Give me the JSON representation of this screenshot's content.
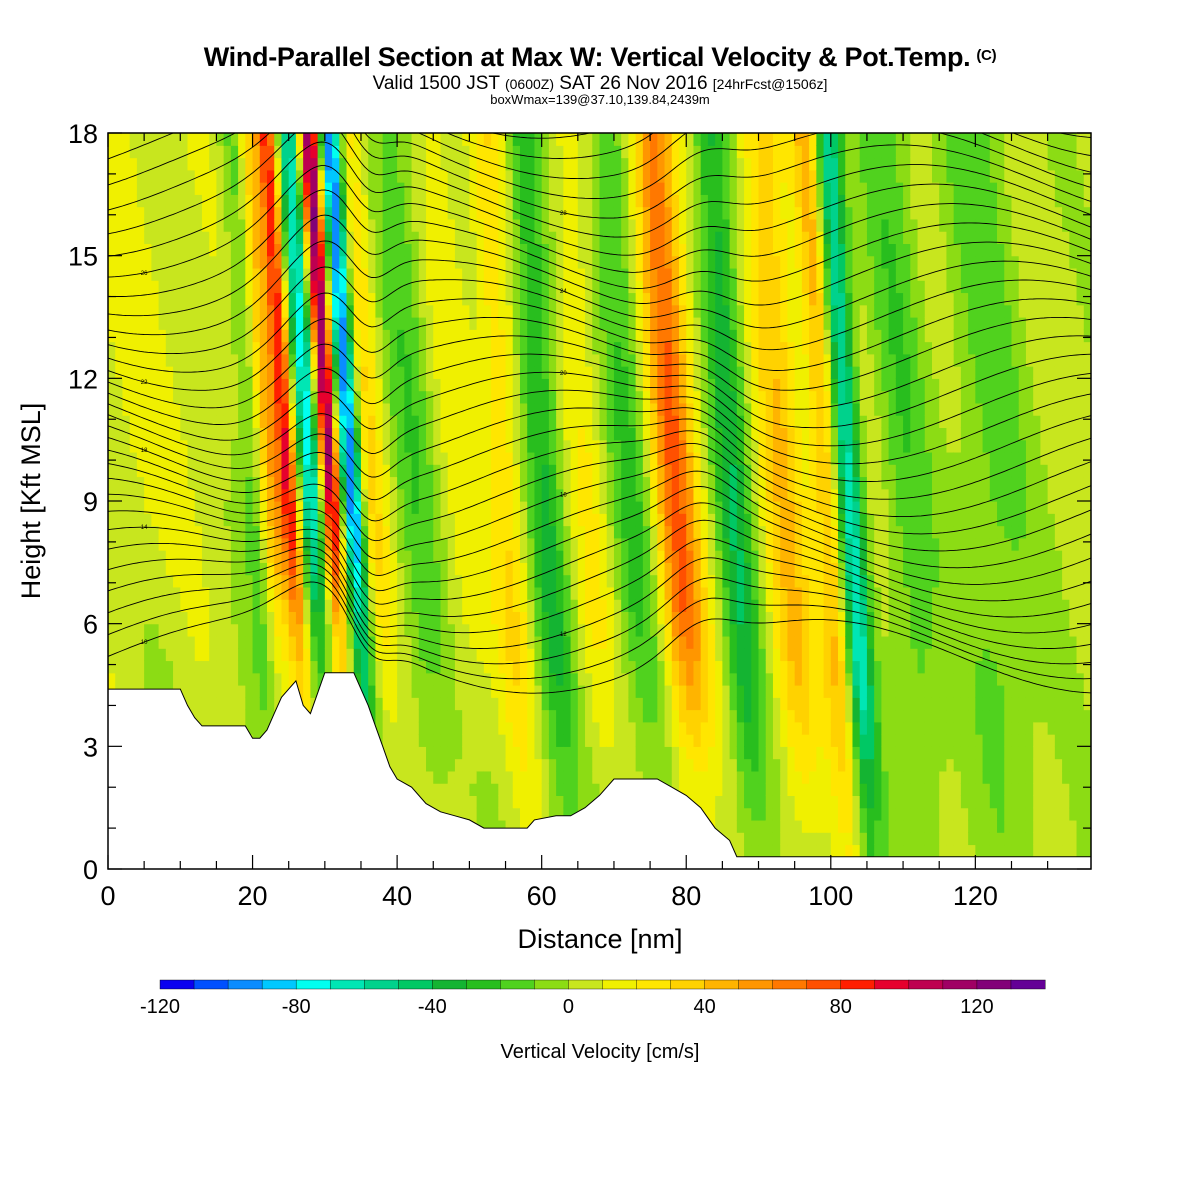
{
  "header": {
    "title": "Wind-Parallel Section at Max W: Vertical Velocity & Pot.Temp.",
    "copyright": "(C)",
    "valid_prefix": "Valid 1500 JST",
    "valid_utc": "(0600Z)",
    "valid_date": "SAT 26 Nov 2016",
    "forecast": "[24hrFcst@1506z]",
    "box_info": "boxWmax=139@37.10,139.84,2439m"
  },
  "chart_data": {
    "type": "heatmap",
    "xlabel": "Distance [nm]",
    "ylabel": "Height [Kft MSL]",
    "xlim": [
      0,
      136
    ],
    "ylim": [
      0,
      18
    ],
    "x_ticks": [
      "0",
      "20",
      "40",
      "60",
      "80",
      "100",
      "120"
    ],
    "y_ticks": [
      "0",
      "3",
      "6",
      "9",
      "12",
      "15",
      "18"
    ],
    "colorbar": {
      "label": "Vertical Velocity [cm/s]",
      "range": [
        -120,
        140
      ],
      "step": 10,
      "tick_labels": [
        "-120",
        "-80",
        "-40",
        "0",
        "40",
        "80",
        "120"
      ],
      "colors": [
        "#0a00f0",
        "#0050ff",
        "#0a8cff",
        "#00c8ff",
        "#00fff0",
        "#00e6b4",
        "#00d28c",
        "#00c864",
        "#14b432",
        "#28be1e",
        "#50d21e",
        "#8cdc14",
        "#c8e61e",
        "#f0f000",
        "#ffe600",
        "#ffd200",
        "#ffb400",
        "#ff9600",
        "#ff7800",
        "#ff5000",
        "#ff1e00",
        "#e6002d",
        "#be0050",
        "#a00064",
        "#820078",
        "#640096"
      ]
    },
    "velocity_features": [
      {
        "x": 2,
        "w": 14,
        "v": 8
      },
      {
        "x": 22,
        "w": 2.0,
        "v": -25
      },
      {
        "x": 24,
        "w": 1.8,
        "v": 45
      },
      {
        "x": 26.5,
        "w": 1.3,
        "v": 80
      },
      {
        "x": 29.5,
        "w": 1.5,
        "v": -75
      },
      {
        "x": 32.3,
        "w": 1.3,
        "v": 115
      },
      {
        "x": 35.2,
        "w": 1.4,
        "v": -110
      },
      {
        "x": 38,
        "w": 2.0,
        "v": 25
      },
      {
        "x": 44,
        "w": 3.0,
        "v": -20
      },
      {
        "x": 50,
        "w": 3.0,
        "v": 10
      },
      {
        "x": 56.5,
        "w": 2.5,
        "v": 25
      },
      {
        "x": 62,
        "w": 2.5,
        "v": -35
      },
      {
        "x": 68,
        "w": 2.5,
        "v": 15
      },
      {
        "x": 74,
        "w": 3.0,
        "v": -25
      },
      {
        "x": 80,
        "w": 3.0,
        "v": 65
      },
      {
        "x": 88,
        "w": 2.5,
        "v": -40
      },
      {
        "x": 95,
        "w": 3.0,
        "v": 35
      },
      {
        "x": 101,
        "w": 2.0,
        "v": 40
      },
      {
        "x": 104,
        "w": 1.8,
        "v": -70
      },
      {
        "x": 112,
        "w": 3.5,
        "v": -20
      },
      {
        "x": 124,
        "w": 5.0,
        "v": -18
      }
    ],
    "terrain_kft": [
      [
        0,
        4.4
      ],
      [
        10,
        4.4
      ],
      [
        11,
        4.0
      ],
      [
        12,
        3.7
      ],
      [
        13,
        3.5
      ],
      [
        19,
        3.5
      ],
      [
        20,
        3.2
      ],
      [
        21,
        3.2
      ],
      [
        22,
        3.4
      ],
      [
        23,
        3.8
      ],
      [
        24,
        4.2
      ],
      [
        25,
        4.4
      ],
      [
        26,
        4.6
      ],
      [
        27,
        4.0
      ],
      [
        28,
        3.8
      ],
      [
        29,
        4.3
      ],
      [
        30,
        4.8
      ],
      [
        34,
        4.8
      ],
      [
        35,
        4.4
      ],
      [
        36,
        4.0
      ],
      [
        37,
        3.5
      ],
      [
        38,
        3.0
      ],
      [
        39,
        2.5
      ],
      [
        40,
        2.2
      ],
      [
        42,
        2.0
      ],
      [
        44,
        1.6
      ],
      [
        46,
        1.4
      ],
      [
        48,
        1.3
      ],
      [
        50,
        1.2
      ],
      [
        52,
        1.0
      ],
      [
        58,
        1.0
      ],
      [
        59,
        1.2
      ],
      [
        62,
        1.3
      ],
      [
        64,
        1.3
      ],
      [
        66,
        1.5
      ],
      [
        68,
        1.8
      ],
      [
        70,
        2.2
      ],
      [
        72,
        2.2
      ],
      [
        76,
        2.2
      ],
      [
        78,
        2.0
      ],
      [
        80,
        1.8
      ],
      [
        82,
        1.5
      ],
      [
        84,
        1.0
      ],
      [
        86,
        0.7
      ],
      [
        87,
        0.3
      ],
      [
        100,
        0.3
      ],
      [
        136,
        0.3
      ]
    ],
    "theta_contours": {
      "count": 38,
      "labels": [
        "10",
        "12",
        "14",
        "16",
        "18",
        "20",
        "22",
        "24",
        "26",
        "28",
        "30",
        "32",
        "34"
      ]
    }
  }
}
